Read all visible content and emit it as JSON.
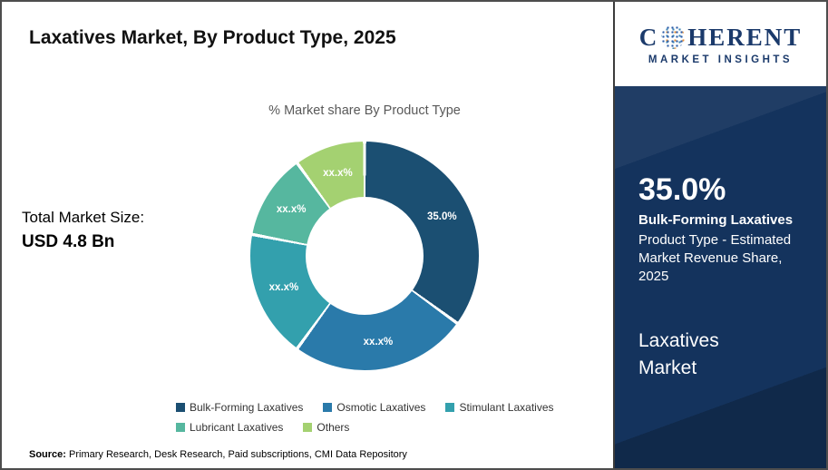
{
  "title": "Laxatives Market, By Product Type, 2025",
  "market_size": {
    "label": "Total Market Size:",
    "value": "USD 4.8 Bn"
  },
  "chart_data": {
    "type": "pie",
    "variant": "donut",
    "title": "% Market share By Product Type",
    "legend_position": "bottom",
    "segments": [
      {
        "label": "Bulk-Forming Laxatives",
        "display_value": "35.0%",
        "value_pct_est": 35.0,
        "color": "#1b4f72"
      },
      {
        "label": "Osmotic Laxatives",
        "display_value": "xx.x%",
        "value_pct_est": 25.0,
        "color": "#2a7aaa"
      },
      {
        "label": "Stimulant Laxatives",
        "display_value": "xx.x%",
        "value_pct_est": 18.0,
        "color": "#33a0ad"
      },
      {
        "label": "Lubricant Laxatives",
        "display_value": "xx.x%",
        "value_pct_est": 12.0,
        "color": "#56b79f"
      },
      {
        "label": "Others",
        "display_value": "xx.x%",
        "value_pct_est": 10.0,
        "color": "#a4d171"
      }
    ]
  },
  "sidebar": {
    "logo": {
      "line1_left": "C",
      "line1_right": "HERENT",
      "line2": "MARKET INSIGHTS"
    },
    "highlight": {
      "value": "35.0%",
      "segment": "Bulk-Forming Laxatives",
      "description": "Product Type - Estimated Market Revenue Share, 2025"
    },
    "market_name": "Laxatives Market"
  },
  "source": {
    "label": "Source:",
    "text": " Primary Research, Desk Research, Paid subscriptions, CMI Data Repository"
  }
}
